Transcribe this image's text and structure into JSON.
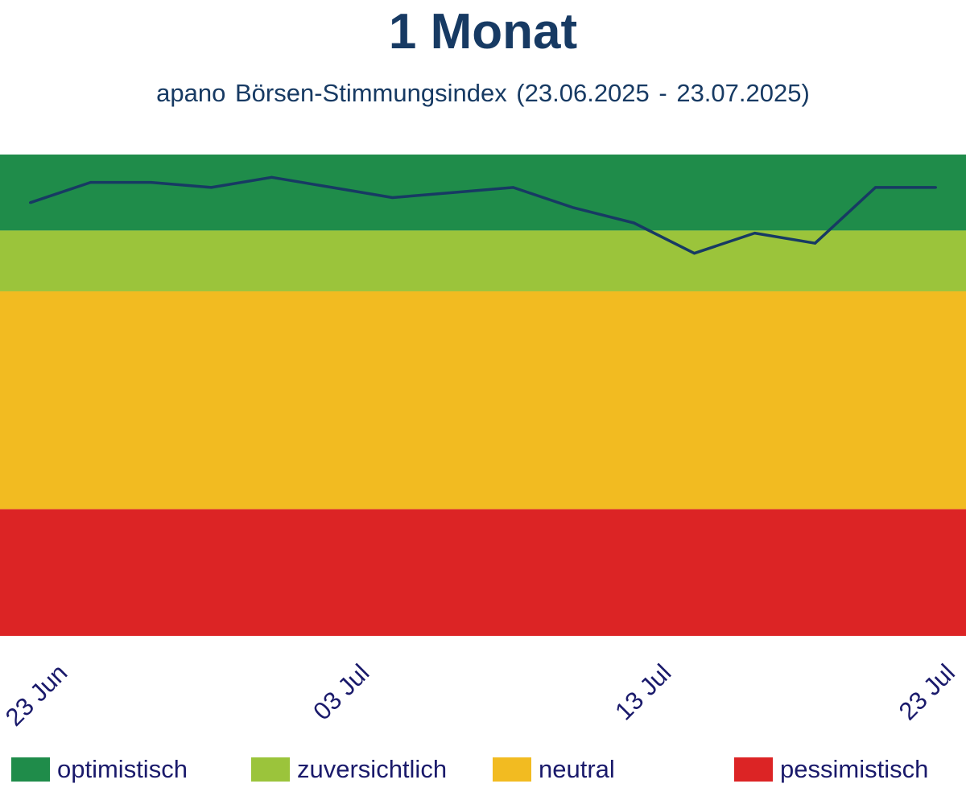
{
  "chart_data": {
    "type": "line",
    "title": "1 Monat",
    "subtitle": "apano Börsen-Stimmungsindex (23.06.2025 - 23.07.2025)",
    "x_ticks": [
      {
        "date": "2025-06-23",
        "label": "23 Jun"
      },
      {
        "date": "2025-07-03",
        "label": "03 Jul"
      },
      {
        "date": "2025-07-13",
        "label": "13 Jul"
      },
      {
        "date": "2025-07-23",
        "label": "23 Jul"
      }
    ],
    "xlim": [
      "2025-06-22",
      "2025-07-24"
    ],
    "ylim": [
      0,
      9.6
    ],
    "y_axis_visible": false,
    "grid": false,
    "line_color": "#173a63",
    "series": [
      {
        "x": [
          "2025-06-23",
          "2025-06-25",
          "2025-06-27",
          "2025-06-29",
          "2025-07-01",
          "2025-07-03",
          "2025-07-05",
          "2025-07-07",
          "2025-07-09",
          "2025-07-11",
          "2025-07-13",
          "2025-07-15",
          "2025-07-17",
          "2025-07-19",
          "2025-07-21",
          "2025-07-23"
        ],
        "values": [
          8.55,
          8.95,
          8.95,
          8.85,
          9.05,
          8.85,
          8.65,
          8.75,
          8.85,
          8.45,
          8.15,
          7.55,
          7.95,
          7.75,
          8.85,
          8.85
        ]
      }
    ],
    "bands": [
      {
        "label": "optimistisch",
        "from": 8.0,
        "to": 9.5,
        "color": "#1f8c4a"
      },
      {
        "label": "zuversichtlich",
        "from": 6.8,
        "to": 8.0,
        "color": "#9bc43b"
      },
      {
        "label": "neutral",
        "from": 2.5,
        "to": 6.8,
        "color": "#f2bb21"
      },
      {
        "label": "pessimistisch",
        "from": 0.0,
        "to": 2.5,
        "color": "#dc2425"
      }
    ],
    "legend_position": "bottom"
  }
}
